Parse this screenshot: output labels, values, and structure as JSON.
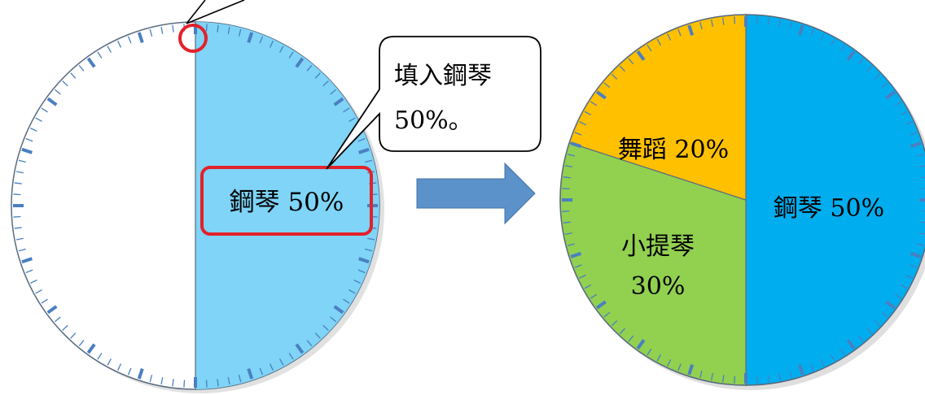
{
  "left_dial": {
    "label": "鋼琴 50%",
    "piano_percent": 50,
    "fill_color": "#7fd4f7",
    "callout": {
      "line1": "填入鋼琴",
      "line2": "50%。"
    },
    "highlight_color": "#e3212a"
  },
  "arrow": {
    "color": "#5b92c9"
  },
  "right_chart": {
    "chart_data": {
      "type": "pie",
      "slices": [
        {
          "label": "鋼琴 50%",
          "value": 50,
          "color": "#00aeef"
        },
        {
          "label": "小提琴 30%",
          "value": 30,
          "color": "#92d050"
        },
        {
          "label": "舞蹈 20%",
          "value": 20,
          "color": "#ffc000"
        }
      ]
    },
    "labels": {
      "piano": "鋼琴 50%",
      "violin_line1": "小提琴",
      "violin_line2": "30%",
      "dance": "舞蹈 20%"
    }
  },
  "tick_color": "#4a7fc1"
}
